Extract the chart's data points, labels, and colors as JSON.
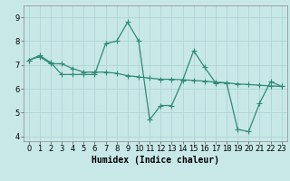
{
  "xlabel": "Humidex (Indice chaleur)",
  "line1_x": [
    0,
    1,
    2,
    3,
    4,
    5,
    6,
    7,
    8,
    9,
    10,
    11,
    12,
    13,
    14,
    15,
    16,
    17,
    18,
    19,
    20,
    21,
    22,
    23
  ],
  "line1_y": [
    7.2,
    7.4,
    7.1,
    6.6,
    6.6,
    6.6,
    6.6,
    7.9,
    8.0,
    8.8,
    8.0,
    4.7,
    5.3,
    5.3,
    6.35,
    7.6,
    6.9,
    6.25,
    6.25,
    4.3,
    4.2,
    5.4,
    6.3,
    6.1
  ],
  "line2_x": [
    0,
    1,
    2,
    3,
    4,
    5,
    6,
    7,
    8,
    9,
    10,
    11,
    12,
    13,
    14,
    15,
    16,
    17,
    18,
    19,
    20,
    21,
    22,
    23
  ],
  "line2_y": [
    7.2,
    7.35,
    7.05,
    7.05,
    6.85,
    6.7,
    6.7,
    6.7,
    6.65,
    6.55,
    6.5,
    6.45,
    6.4,
    6.4,
    6.38,
    6.35,
    6.32,
    6.28,
    6.25,
    6.2,
    6.18,
    6.15,
    6.12,
    6.1
  ],
  "line_color": "#2e8b74",
  "bg_color": "#c8e8e8",
  "grid_color": "#b0d4d4",
  "ylim": [
    3.8,
    9.5
  ],
  "xlim": [
    -0.5,
    23.5
  ],
  "yticks": [
    4,
    5,
    6,
    7,
    8,
    9
  ],
  "xticks": [
    0,
    1,
    2,
    3,
    4,
    5,
    6,
    7,
    8,
    9,
    10,
    11,
    12,
    13,
    14,
    15,
    16,
    17,
    18,
    19,
    20,
    21,
    22,
    23
  ],
  "marker": "+",
  "markersize": 4,
  "linewidth": 0.9,
  "xlabel_fontsize": 7,
  "tick_fontsize": 6
}
